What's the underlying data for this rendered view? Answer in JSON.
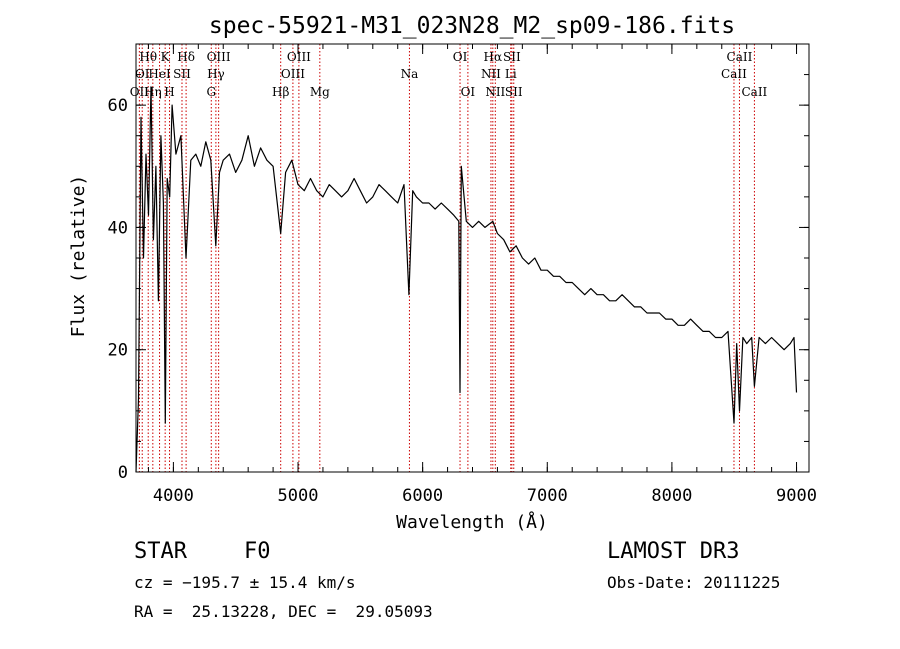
{
  "chart_data": {
    "type": "line",
    "title": "spec-55921-M31_023N28_M2_sp09-186.fits",
    "xlabel": "Wavelength (Å)",
    "ylabel": "Flux (relative)",
    "xlim": [
      3700,
      9100
    ],
    "ylim": [
      0,
      70
    ],
    "xticks": [
      4000,
      5000,
      6000,
      7000,
      8000,
      9000
    ],
    "yticks": [
      0,
      20,
      40,
      60
    ],
    "x_minor_step": 200,
    "y_minor_step": 5,
    "line_color": "#000000",
    "marker_color": "#cc0000",
    "series": [
      {
        "name": "flux",
        "x": [
          3700,
          3720,
          3740,
          3760,
          3780,
          3800,
          3820,
          3840,
          3860,
          3880,
          3900,
          3920,
          3935,
          3950,
          3970,
          3990,
          4020,
          4060,
          4101,
          4140,
          4180,
          4220,
          4260,
          4300,
          4340,
          4370,
          4400,
          4450,
          4500,
          4550,
          4600,
          4650,
          4700,
          4750,
          4800,
          4861,
          4900,
          4950,
          5000,
          5050,
          5100,
          5150,
          5200,
          5250,
          5300,
          5350,
          5400,
          5450,
          5500,
          5550,
          5600,
          5650,
          5700,
          5750,
          5800,
          5850,
          5890,
          5920,
          5950,
          6000,
          6050,
          6100,
          6150,
          6200,
          6250,
          6290,
          6300,
          6310,
          6350,
          6400,
          6450,
          6500,
          6563,
          6600,
          6650,
          6700,
          6750,
          6800,
          6850,
          6900,
          6950,
          7000,
          7050,
          7100,
          7150,
          7200,
          7250,
          7300,
          7350,
          7400,
          7450,
          7500,
          7550,
          7600,
          7650,
          7700,
          7750,
          7800,
          7850,
          7900,
          7950,
          8000,
          8050,
          8100,
          8150,
          8200,
          8250,
          8300,
          8350,
          8400,
          8450,
          8498,
          8520,
          8542,
          8570,
          8600,
          8640,
          8662,
          8700,
          8750,
          8800,
          8850,
          8900,
          8950,
          8980,
          9000
        ],
        "y": [
          0,
          12,
          58,
          35,
          52,
          42,
          63,
          38,
          50,
          28,
          55,
          44,
          8,
          48,
          45,
          60,
          52,
          55,
          35,
          51,
          52,
          50,
          54,
          51,
          37,
          49,
          51,
          52,
          49,
          51,
          55,
          50,
          53,
          51,
          50,
          39,
          49,
          51,
          47,
          46,
          48,
          46,
          45,
          47,
          46,
          45,
          46,
          48,
          46,
          44,
          45,
          47,
          46,
          45,
          44,
          47,
          29,
          46,
          45,
          44,
          44,
          43,
          44,
          43,
          42,
          41,
          13,
          50,
          41,
          40,
          41,
          40,
          41,
          39,
          38,
          36,
          37,
          35,
          34,
          35,
          33,
          33,
          32,
          32,
          31,
          31,
          30,
          29,
          30,
          29,
          29,
          28,
          28,
          29,
          28,
          27,
          27,
          26,
          26,
          26,
          25,
          25,
          24,
          24,
          25,
          24,
          23,
          23,
          22,
          22,
          23,
          8,
          21,
          10,
          22,
          21,
          22,
          14,
          22,
          21,
          22,
          21,
          20,
          21,
          22,
          13
        ]
      }
    ],
    "lines": [
      {
        "label": "OII",
        "wavelength": 3727,
        "row": 3
      },
      {
        "label": "OI",
        "wavelength": 3750,
        "row": 2
      },
      {
        "label": "Hθ",
        "wavelength": 3798,
        "row": 1
      },
      {
        "label": "Hη",
        "wavelength": 3835,
        "row": 3
      },
      {
        "label": "HeI",
        "wavelength": 3889,
        "row": 2
      },
      {
        "label": "K",
        "wavelength": 3934,
        "row": 1
      },
      {
        "label": "H",
        "wavelength": 3969,
        "row": 3
      },
      {
        "label": "SII",
        "wavelength": 4069,
        "row": 2
      },
      {
        "label": "Hδ",
        "wavelength": 4102,
        "row": 1
      },
      {
        "label": "G",
        "wavelength": 4304,
        "row": 3
      },
      {
        "label": "Hγ",
        "wavelength": 4341,
        "row": 2
      },
      {
        "label": "OIII",
        "wavelength": 4363,
        "row": 1
      },
      {
        "label": "Hβ",
        "wavelength": 4861,
        "row": 3
      },
      {
        "label": "OIII",
        "wavelength": 4959,
        "row": 2
      },
      {
        "label": "OIII",
        "wavelength": 5007,
        "row": 1
      },
      {
        "label": "Mg",
        "wavelength": 5175,
        "row": 3
      },
      {
        "label": "Na",
        "wavelength": 5894,
        "row": 2
      },
      {
        "label": "OI",
        "wavelength": 6300,
        "row": 1
      },
      {
        "label": "OI",
        "wavelength": 6363,
        "row": 3
      },
      {
        "label": "NII",
        "wavelength": 6548,
        "row": 2
      },
      {
        "label": "Hα",
        "wavelength": 6563,
        "row": 1
      },
      {
        "label": "NII",
        "wavelength": 6583,
        "row": 3
      },
      {
        "label": "Li",
        "wavelength": 6707,
        "row": 2
      },
      {
        "label": "SII",
        "wavelength": 6716,
        "row": 1
      },
      {
        "label": "SII",
        "wavelength": 6731,
        "row": 3
      },
      {
        "label": "CaII",
        "wavelength": 8498,
        "row": 2
      },
      {
        "label": "CaII",
        "wavelength": 8542,
        "row": 1
      },
      {
        "label": "CaII",
        "wavelength": 8662,
        "row": 3
      }
    ]
  },
  "info": {
    "object_class": "STAR",
    "subclass": "F0",
    "survey": "LAMOST DR3",
    "cz": "cz = −195.7 ± 15.4 km/s",
    "obs_date": "Obs-Date: 20111225",
    "coords": "RA =  25.13228, DEC =  29.05093"
  }
}
